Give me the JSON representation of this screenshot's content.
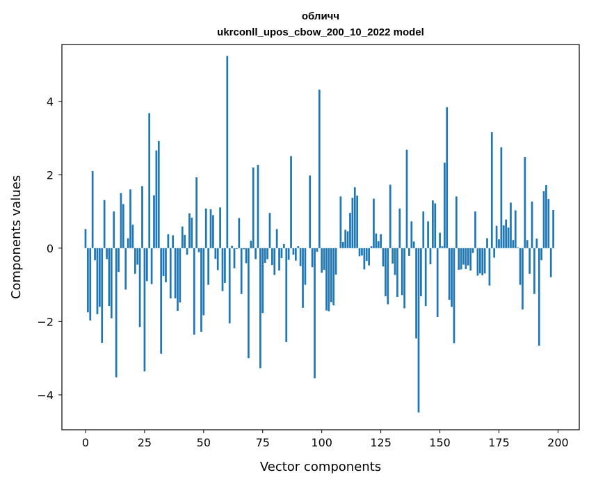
{
  "chart_data": {
    "type": "bar",
    "title_line1": "обличч",
    "title_line2": "ukrconll_upos_cbow_200_10_2022 model",
    "xlabel": "Vector components",
    "ylabel": "Components values",
    "xlim": [
      -10,
      209
    ],
    "ylim": [
      -4.95,
      5.55
    ],
    "x_ticks": [
      0,
      25,
      50,
      75,
      100,
      125,
      150,
      175,
      200
    ],
    "y_ticks": [
      -4,
      -2,
      0,
      2,
      4
    ],
    "y_tick_labels": [
      "−4",
      "−2",
      "0",
      "2",
      "4"
    ],
    "bar_color": "#1f77b4",
    "grid": false,
    "values": [
      0.52,
      -1.75,
      -1.97,
      2.1,
      -0.33,
      -1.8,
      -1.6,
      -2.58,
      1.31,
      -0.3,
      -1.58,
      -1.91,
      1.0,
      -3.52,
      -0.65,
      1.5,
      1.2,
      -1.13,
      0.27,
      1.6,
      0.64,
      -0.7,
      -0.45,
      -2.15,
      1.69,
      -3.36,
      -0.9,
      3.68,
      -0.98,
      1.44,
      2.66,
      2.92,
      -2.88,
      -0.76,
      -0.93,
      0.38,
      -1.37,
      0.35,
      -1.37,
      -1.71,
      -1.48,
      0.59,
      0.36,
      -0.18,
      0.95,
      0.83,
      -2.36,
      1.93,
      -0.11,
      -2.28,
      -1.83,
      1.08,
      -1.0,
      1.06,
      0.9,
      -0.29,
      -0.6,
      1.11,
      -1.17,
      -0.95,
      5.24,
      -2.05,
      0.06,
      -0.55,
      -0.02,
      0.82,
      -1.25,
      -0.03,
      -0.41,
      -3.0,
      0.2,
      2.2,
      -0.3,
      2.27,
      -3.27,
      -1.77,
      -0.4,
      -0.3,
      0.96,
      -0.46,
      -0.73,
      0.52,
      -0.61,
      -0.27,
      0.11,
      -2.56,
      -0.32,
      2.51,
      -0.18,
      -0.34,
      0.05,
      -0.49,
      -1.63,
      -1.0,
      0.0,
      1.98,
      -0.52,
      -3.55,
      -0.1,
      4.32,
      -0.67,
      -0.59,
      -1.7,
      -1.72,
      -1.47,
      -1.56,
      -0.72,
      0.0,
      1.41,
      0.17,
      0.5,
      0.46,
      0.96,
      1.37,
      1.66,
      1.43,
      -0.22,
      -0.2,
      -0.58,
      -0.35,
      -0.47,
      0.05,
      1.35,
      0.4,
      0.19,
      0.38,
      -0.5,
      -1.31,
      -1.53,
      1.73,
      -0.42,
      -0.73,
      -1.33,
      1.08,
      -1.28,
      -1.64,
      2.68,
      -0.21,
      0.73,
      0.18,
      -2.46,
      -4.48,
      -1.31,
      1.0,
      -1.58,
      0.73,
      -0.44,
      1.3,
      1.22,
      -1.88,
      0.42,
      0.05,
      2.33,
      3.84,
      -1.41,
      -1.6,
      -2.59,
      1.41,
      -0.59,
      -0.58,
      -0.45,
      -0.57,
      -0.47,
      -0.61,
      -0.13,
      1.0,
      -0.75,
      -0.69,
      -0.74,
      -0.69,
      0.27,
      -1.02,
      3.16,
      -0.26,
      0.61,
      0.24,
      2.75,
      0.62,
      0.78,
      0.56,
      1.24,
      0.22,
      1.03,
      0.02,
      -1.0,
      -1.67,
      2.48,
      0.22,
      -0.7,
      1.27,
      -1.25,
      0.26,
      -2.66,
      -0.33,
      1.55,
      1.72,
      1.34,
      -0.79,
      1.04
    ]
  }
}
